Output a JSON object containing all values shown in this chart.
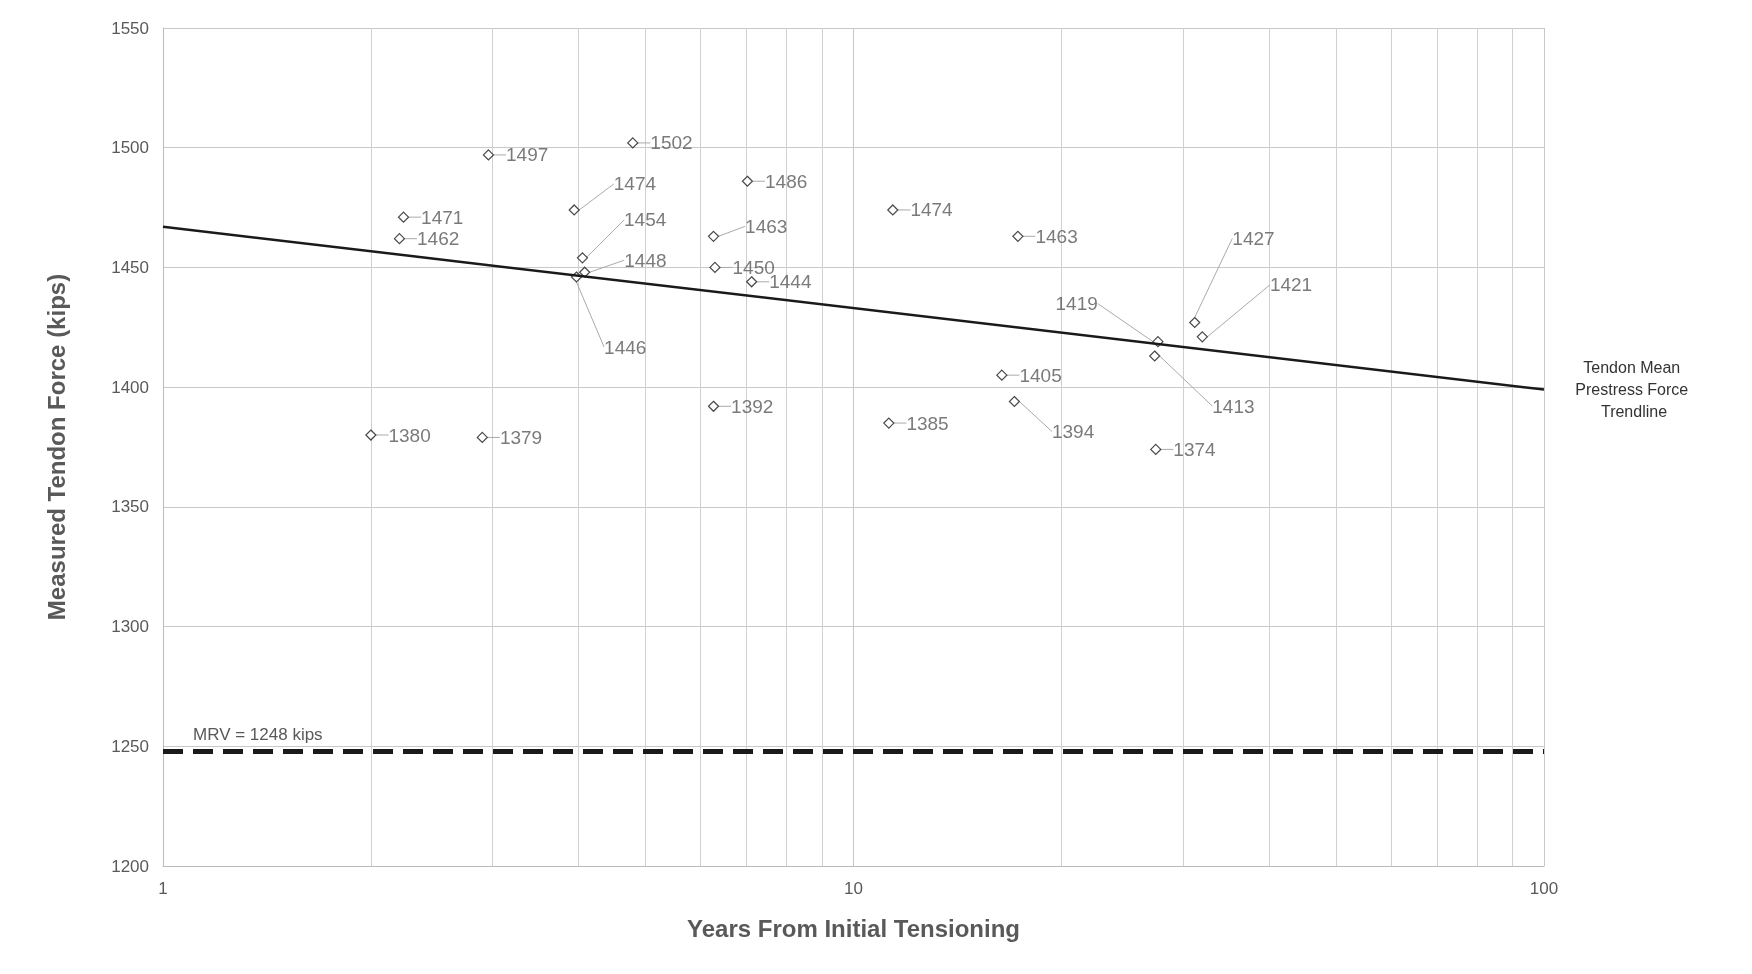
{
  "chart_data": {
    "type": "scatter",
    "xlabel": "Years From Initial Tensioning",
    "ylabel": "Measured Tendon Force (kips)",
    "log": "x",
    "xlim": [
      1,
      100
    ],
    "xticks": [
      1,
      10,
      100
    ],
    "ylim": [
      1200,
      1550
    ],
    "yticks": [
      1200,
      1250,
      1300,
      1350,
      1400,
      1450,
      1500,
      1550
    ],
    "grid": true,
    "legend": false,
    "series": [
      {
        "color": "#1a1a1a",
        "marker": "diamond",
        "value_labels": [
          "1380",
          "1379",
          "1471",
          "1462",
          "1497",
          "1474",
          "1454",
          "1448",
          "1446",
          "1502",
          "1463",
          "1450",
          "1392",
          "1486",
          "1444",
          "1474",
          "1385",
          "1405",
          "1394",
          "1463",
          "1419",
          "1413",
          "1374",
          "1427",
          "1421"
        ],
        "x": [
          2.0,
          2.9,
          2.23,
          2.2,
          2.96,
          3.94,
          4.05,
          4.08,
          3.97,
          4.79,
          6.27,
          6.3,
          6.27,
          7.02,
          7.12,
          11.4,
          11.25,
          16.4,
          17.1,
          17.3,
          27.6,
          27.3,
          27.4,
          31.2,
          32.0
        ],
        "values": [
          1380,
          1379,
          1471,
          1462,
          1497,
          1474,
          1454,
          1448,
          1446,
          1502,
          1463,
          1450,
          1392,
          1486,
          1444,
          1474,
          1385,
          1405,
          1394,
          1463,
          1419,
          1413,
          1374,
          1427,
          1421
        ]
      },
      {
        "type": "line",
        "name": "Tendon Mean Prestress Force Trendline",
        "color": "#1a1a1a",
        "x": [
          1,
          100
        ],
        "values": [
          1467,
          1399
        ]
      }
    ],
    "ref_lines": [
      {
        "axis": "y",
        "value": 1248,
        "label": "MRV = 1248 kips",
        "color": "#1a1a1a",
        "line_style": "dashed"
      }
    ]
  }
}
